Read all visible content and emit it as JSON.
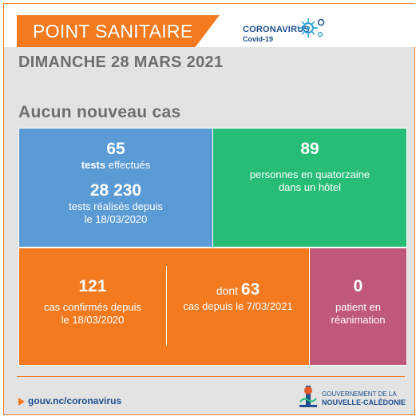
{
  "header": {
    "banner": "POINT SANITAIRE",
    "logo_title": "CORONAVIRUS",
    "logo_sub": "Covid-19"
  },
  "date": "DIMANCHE 28 MARS 2021",
  "subtitle": "Aucun nouveau cas",
  "tests": {
    "count": "65",
    "label_bold": "tests",
    "label_rest": " effectués",
    "total": "28 230",
    "total_label_1": "tests réalisés depuis",
    "total_label_2": "le 18/03/2020"
  },
  "quarantine": {
    "count": "89",
    "label_1": "personnes en quatorzaine",
    "label_2": "dans un hôtel"
  },
  "confirmed": {
    "count": "121",
    "label_1": "cas confirmés depuis",
    "label_2": "le 18/03/2020",
    "dont_prefix": "dont ",
    "dont_count": "63",
    "dont_label": "cas depuis le 7/03/2021"
  },
  "icu": {
    "count": "0",
    "label_1": "patient en",
    "label_2": "réanimation"
  },
  "footer": {
    "link": "gouv.nc/coronavirus",
    "gov_line1": "GOUVERNEMENT DE LA",
    "gov_line2": "NOUVELLE-CALÉDONIE"
  },
  "colors": {
    "orange": "#f47a20",
    "blue": "#5b9bd5",
    "green": "#27bd76",
    "pink": "#c0587c",
    "navy": "#1e4f8e"
  }
}
